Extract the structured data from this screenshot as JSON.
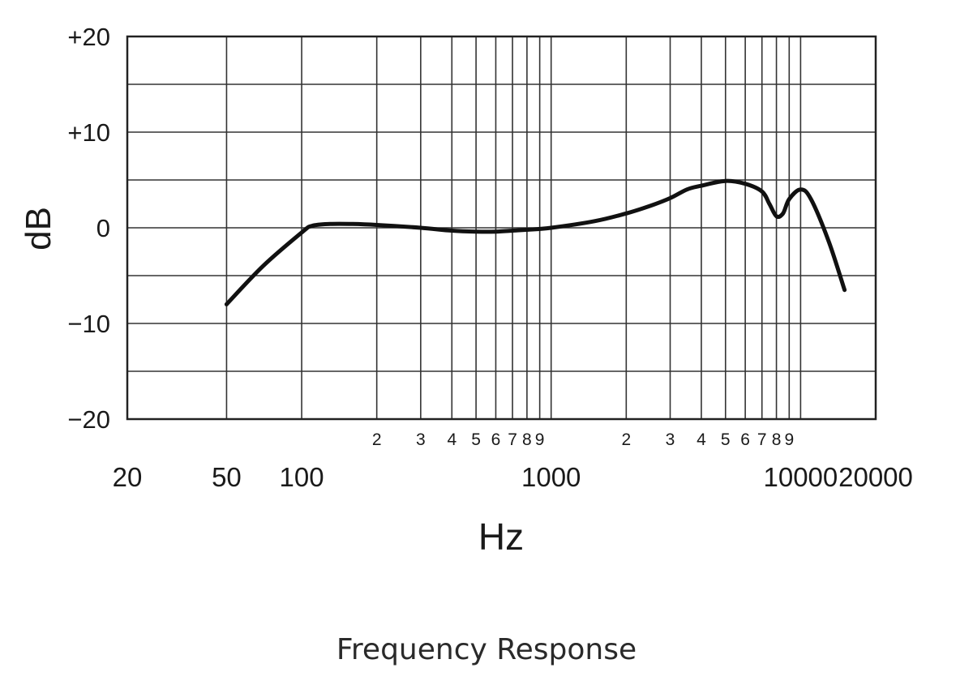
{
  "chart_data": {
    "type": "line",
    "title": "Frequency Response",
    "xlabel": "Hz",
    "ylabel": "dB",
    "xscale": "log",
    "xlim": [
      20,
      20000
    ],
    "ylim": [
      -20,
      20
    ],
    "grid": true,
    "legend": null,
    "y_ticks": [
      {
        "value": 20,
        "label": "+20"
      },
      {
        "value": 10,
        "label": "+10"
      },
      {
        "value": 0,
        "label": "0"
      },
      {
        "value": -10,
        "label": "−10"
      },
      {
        "value": -20,
        "label": "−20"
      }
    ],
    "y_gridlines": [
      20,
      15,
      10,
      5,
      0,
      -5,
      -10,
      -15,
      -20
    ],
    "x_major_ticks": [
      {
        "value": 20,
        "label": "20"
      },
      {
        "value": 50,
        "label": "50"
      },
      {
        "value": 100,
        "label": "100"
      },
      {
        "value": 1000,
        "label": "1000"
      },
      {
        "value": 10000,
        "label": "10000"
      },
      {
        "value": 20000,
        "label": "20000"
      }
    ],
    "x_minor_ticks": [
      {
        "value": 200,
        "label": "2"
      },
      {
        "value": 300,
        "label": "3"
      },
      {
        "value": 400,
        "label": "4"
      },
      {
        "value": 500,
        "label": "5"
      },
      {
        "value": 600,
        "label": "6"
      },
      {
        "value": 700,
        "label": "7"
      },
      {
        "value": 800,
        "label": "8"
      },
      {
        "value": 900,
        "label": "9"
      },
      {
        "value": 2000,
        "label": "2"
      },
      {
        "value": 3000,
        "label": "3"
      },
      {
        "value": 4000,
        "label": "4"
      },
      {
        "value": 5000,
        "label": "5"
      },
      {
        "value": 6000,
        "label": "6"
      },
      {
        "value": 7000,
        "label": "7"
      },
      {
        "value": 8000,
        "label": "8"
      },
      {
        "value": 9000,
        "label": "9"
      }
    ],
    "x_gridlines": [
      50,
      100,
      200,
      300,
      400,
      500,
      600,
      700,
      800,
      900,
      1000,
      2000,
      3000,
      4000,
      5000,
      6000,
      7000,
      8000,
      9000,
      10000
    ],
    "series": [
      {
        "name": "Frequency Response",
        "color": "#111111",
        "x": [
          50,
          70,
          100,
          110,
          130,
          160,
          200,
          300,
          400,
          500,
          600,
          700,
          800,
          1000,
          1500,
          2000,
          2500,
          3000,
          3500,
          4000,
          5000,
          6000,
          7000,
          7500,
          8000,
          8500,
          9000,
          10000,
          11000,
          13000,
          15000
        ],
        "y": [
          -8,
          -4,
          -0.5,
          0.2,
          0.4,
          0.4,
          0.3,
          0,
          -0.3,
          -0.4,
          -0.4,
          -0.3,
          -0.2,
          0,
          0.7,
          1.5,
          2.3,
          3.1,
          4.0,
          4.4,
          4.9,
          4.6,
          3.8,
          2.5,
          1.2,
          1.5,
          3.0,
          4.0,
          3.0,
          -1.5,
          -6.5
        ]
      }
    ]
  },
  "colors": {
    "background": "#ffffff",
    "grid": "#333333",
    "line": "#111111",
    "text": "#1a1a1a"
  }
}
